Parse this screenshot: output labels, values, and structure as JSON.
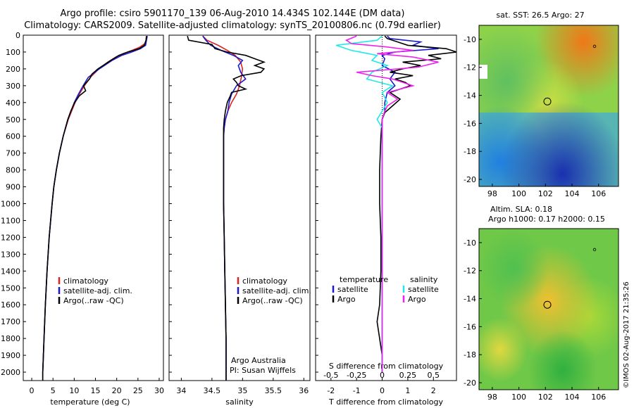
{
  "header": {
    "title_line1": "Argo profile: csiro 5901170_139 06-Aug-2010 14.434S 102.144E (DM data)",
    "title_line2": "Climatology: CARS2009. Satellite-adjusted climatology: synTS_20100806.nc (0.79d earlier)"
  },
  "colors": {
    "climatology": "#dd2222",
    "satellite": "#1a1acc",
    "argo": "#000000",
    "t_satellite": "#1a1acc",
    "s_satellite": "#22e8e8",
    "s_argo": "#ee22ee"
  },
  "chart_data": [
    {
      "type": "line",
      "id": "temperature",
      "xlabel": "temperature (deg C)",
      "ylabel": "",
      "xlim": [
        -2,
        31
      ],
      "ylim": [
        2050,
        0
      ],
      "xticks": [
        0,
        5,
        10,
        15,
        20,
        25,
        30
      ],
      "yticks": [
        0,
        100,
        200,
        300,
        400,
        500,
        600,
        700,
        800,
        900,
        1000,
        1100,
        1200,
        1300,
        1400,
        1500,
        1600,
        1700,
        1800,
        1900,
        2000
      ],
      "legend": [
        "climatology",
        "satellite-adj. clim.",
        "Argo(..raw -QC)"
      ],
      "series": [
        {
          "name": "climatology",
          "depth": [
            5,
            30,
            50,
            70,
            90,
            110,
            130,
            160,
            200,
            250,
            300,
            350,
            400,
            500,
            600,
            700,
            800,
            900,
            1000,
            1200,
            1400,
            1600,
            1800,
            2000,
            2050
          ],
          "values": [
            27,
            26.9,
            26.6,
            25.5,
            23.6,
            21.5,
            19.8,
            17.9,
            15.8,
            13.8,
            12.4,
            11.2,
            10.2,
            8.6,
            7.4,
            6.5,
            5.8,
            5.2,
            4.8,
            4.1,
            3.6,
            3.2,
            2.9,
            2.6,
            2.6
          ]
        },
        {
          "name": "satellite-adj. clim.",
          "depth": [
            5,
            30,
            60,
            80,
            100,
            120,
            150,
            200,
            250,
            300,
            350,
            400,
            500,
            600,
            700,
            800,
            900,
            1000,
            1200,
            1400,
            1600,
            1800,
            2000,
            2050
          ],
          "values": [
            27.2,
            27,
            26.8,
            25.6,
            23.5,
            21.2,
            18.9,
            15.9,
            13.3,
            12.1,
            11,
            10,
            8.5,
            7.4,
            6.5,
            5.8,
            5.2,
            4.8,
            4.1,
            3.6,
            3.2,
            2.9,
            2.6,
            2.6
          ]
        },
        {
          "name": "Argo(..raw -QC)",
          "depth": [
            5,
            30,
            60,
            80,
            100,
            120,
            150,
            200,
            230,
            260,
            300,
            330,
            360,
            400,
            450,
            500,
            600,
            700,
            800,
            900,
            1000,
            1200,
            1400,
            1600,
            1800,
            2000,
            2050
          ],
          "values": [
            27,
            26.9,
            26.5,
            25.3,
            22.6,
            20.5,
            18.6,
            15.6,
            14.2,
            13.6,
            12.2,
            12.7,
            11.2,
            10.1,
            9.2,
            8.5,
            7.4,
            6.5,
            5.8,
            5.2,
            4.8,
            4.1,
            3.6,
            3.2,
            2.9,
            2.6,
            2.6
          ]
        }
      ]
    },
    {
      "type": "line",
      "id": "salinity",
      "xlabel": "salinity",
      "xlim": [
        33.8,
        36.1
      ],
      "ylim": [
        2050,
        0
      ],
      "xticks": [
        34,
        34.5,
        35,
        35.5,
        36
      ],
      "legend": [
        "climatology",
        "satellite-adj. clim.",
        "Argo(..raw -QC)"
      ],
      "annotation": [
        "Argo Australia",
        "PI: Susan Wijffels"
      ],
      "series": [
        {
          "name": "climatology",
          "depth": [
            5,
            30,
            60,
            90,
            120,
            160,
            200,
            250,
            300,
            350,
            400,
            450,
            500,
            550,
            600,
            800,
            1000,
            1200,
            1400,
            1600,
            1800,
            2000,
            2050
          ],
          "values": [
            34.35,
            34.42,
            34.6,
            34.75,
            34.88,
            34.97,
            35,
            34.98,
            34.95,
            34.9,
            34.82,
            34.76,
            34.72,
            34.7,
            34.69,
            34.69,
            34.69,
            34.7,
            34.71,
            34.72,
            34.73,
            34.73,
            34.73
          ]
        },
        {
          "name": "satellite-adj. clim.",
          "depth": [
            5,
            30,
            60,
            90,
            120,
            150,
            180,
            220,
            260,
            300,
            350,
            400,
            450,
            500,
            550,
            600,
            800,
            1000,
            1200,
            1400,
            1600,
            1800,
            2000,
            2050
          ],
          "values": [
            34.35,
            34.4,
            34.48,
            34.65,
            34.85,
            35,
            34.93,
            34.97,
            35.05,
            34.9,
            34.82,
            34.78,
            34.76,
            34.72,
            34.7,
            34.69,
            34.69,
            34.69,
            34.7,
            34.71,
            34.72,
            34.73,
            34.73,
            34.73
          ]
        },
        {
          "name": "Argo(..raw -QC)",
          "depth": [
            5,
            30,
            55,
            80,
            100,
            120,
            140,
            160,
            180,
            200,
            220,
            240,
            260,
            280,
            300,
            320,
            340,
            360,
            400,
            450,
            500,
            550,
            600,
            800,
            1000,
            1200,
            1400,
            1600,
            1800,
            2000,
            2050
          ],
          "values": [
            34.1,
            34.12,
            34.5,
            34.55,
            34.75,
            35.05,
            35.2,
            35.35,
            35.2,
            35.35,
            35.3,
            34.98,
            34.85,
            34.9,
            34.93,
            35.05,
            34.82,
            34.8,
            34.75,
            34.72,
            34.7,
            34.69,
            34.69,
            34.69,
            34.69,
            34.7,
            34.71,
            34.72,
            34.73,
            34.73,
            34.73
          ]
        }
      ]
    },
    {
      "type": "line",
      "id": "difference",
      "xlabel": "T difference from climatology",
      "xlabel_top": "S difference from climatology",
      "xlim": [
        -2.6,
        2.9
      ],
      "ylim": [
        2050,
        0
      ],
      "xticks": [
        -2,
        -1,
        0,
        1,
        2
      ],
      "sticks": [
        -0.5,
        -0.25,
        0,
        0.25,
        0.5
      ],
      "s_scale": 4,
      "legend": {
        "temperature_title": "temperature",
        "salinity_title": "salinity",
        "entries": [
          "satellite",
          "Argo",
          "satellite",
          "Argo"
        ]
      },
      "series": [
        {
          "name": "temperature satellite",
          "depth": [
            5,
            20,
            40,
            60,
            80,
            100,
            120,
            140,
            180,
            220,
            260,
            300,
            340,
            400,
            450,
            500,
            600,
            800,
            1000,
            1200,
            1400,
            1600,
            1800,
            1900,
            2000
          ],
          "values": [
            0.2,
            0.3,
            1.5,
            1.2,
            2.2,
            0.5,
            0,
            0.1,
            0,
            0.5,
            0.3,
            0.5,
            0.2,
            0.1,
            0.1,
            0,
            0,
            0,
            0,
            0,
            0,
            0,
            0,
            0,
            0
          ]
        },
        {
          "name": "temperature Argo",
          "depth": [
            5,
            20,
            40,
            60,
            80,
            100,
            120,
            140,
            160,
            180,
            200,
            220,
            240,
            260,
            280,
            300,
            340,
            380,
            420,
            460,
            500,
            600,
            800,
            1000,
            1200,
            1400,
            1600,
            1700,
            1800,
            1900,
            2000
          ],
          "values": [
            0.1,
            0.2,
            0.6,
            1,
            2.5,
            2.9,
            1.8,
            2.3,
            0.8,
            1.5,
            0.8,
            0.3,
            1.2,
            0.5,
            0.9,
            1.1,
            0.3,
            0.7,
            0.4,
            0.1,
            0,
            -0.05,
            -0.1,
            -0.1,
            -0.05,
            -0.05,
            -0.1,
            -0.2,
            -0.1,
            0,
            0
          ]
        },
        {
          "name": "salinity satellite",
          "depth": [
            5,
            30,
            60,
            90,
            120,
            150,
            180,
            220,
            260,
            300,
            340,
            400,
            450,
            500,
            550,
            600,
            800,
            1000,
            1200,
            1400,
            1600,
            1800,
            2000
          ],
          "values": [
            0,
            -0.05,
            -0.45,
            -0.3,
            -0.05,
            -0.1,
            0.05,
            -0.1,
            -0.15,
            0.1,
            0,
            0.05,
            0,
            -0.05,
            0,
            0,
            0,
            0,
            0,
            0,
            0,
            0,
            0
          ]
        },
        {
          "name": "salinity Argo",
          "depth": [
            5,
            30,
            50,
            70,
            90,
            110,
            130,
            160,
            190,
            220,
            240,
            260,
            300,
            340,
            380,
            420,
            460,
            500,
            600,
            800,
            1000,
            1200,
            1400,
            1600,
            1800,
            2000
          ],
          "values": [
            -0.25,
            -0.35,
            -0.3,
            0.05,
            0.3,
            -0.05,
            0.3,
            0.55,
            0.35,
            -0.25,
            -0.1,
            0.1,
            0.3,
            0.05,
            0.15,
            0.05,
            0.02,
            0,
            0,
            0,
            0,
            0,
            0,
            0,
            0,
            0
          ]
        }
      ]
    },
    {
      "type": "heatmap",
      "id": "sst_map",
      "title": "sat. SST: 26.5 Argo: 27",
      "xlim": [
        97,
        107.5
      ],
      "ylim": [
        -20.5,
        -9
      ],
      "xticks": [
        98,
        100,
        102,
        104,
        106
      ],
      "yticks": [
        -10,
        -12,
        -14,
        -16,
        -18,
        -20
      ],
      "float_position": {
        "lon": 102.144,
        "lat": -14.434
      }
    },
    {
      "type": "heatmap",
      "id": "sla_map",
      "title_line1": "Altim. SLA: 0.18",
      "title_line2": "Argo h1000: 0.17 h2000: 0.15",
      "xlim": [
        97,
        107.5
      ],
      "ylim": [
        -20.5,
        -9
      ],
      "xticks": [
        98,
        100,
        102,
        104,
        106
      ],
      "yticks": [
        -10,
        -12,
        -14,
        -16,
        -18,
        -20
      ],
      "float_position": {
        "lon": 102.144,
        "lat": -14.434
      }
    }
  ],
  "footer": {
    "stamp": "©IMOS 02-Aug-2017 21:35:26"
  }
}
